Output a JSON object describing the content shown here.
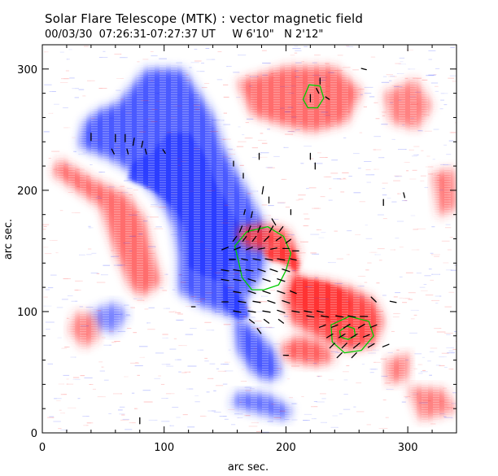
{
  "header": {
    "title": "Solar Flare Telescope (MTK) : vector magnetic field",
    "subtitle": "00/03/30  07:26:31-07:27:37 UT     W 6'10\"   N 2'12\""
  },
  "chart_data": {
    "type": "heatmap",
    "title": "Solar Flare Telescope (MTK) : vector magnetic field",
    "xlabel": "arc sec.",
    "ylabel": "arc sec.",
    "xlim": [
      0,
      340
    ],
    "ylim": [
      0,
      320
    ],
    "x_ticks": [
      0,
      100,
      200,
      300
    ],
    "y_ticks": [
      0,
      100,
      200,
      300
    ],
    "colors": {
      "positive_polarity": "#ff3030",
      "negative_polarity": "#2a3cff",
      "contour": "#00cc00",
      "vectors": "#000000",
      "frame": "#000000"
    },
    "regions": [
      {
        "polarity": "negative",
        "points": [
          [
            62,
            272
          ],
          [
            85,
            300
          ],
          [
            115,
            300
          ],
          [
            130,
            278
          ],
          [
            140,
            262
          ],
          [
            148,
            236
          ],
          [
            160,
            214
          ],
          [
            170,
            196
          ],
          [
            182,
            172
          ],
          [
            185,
            150
          ],
          [
            180,
            130
          ],
          [
            168,
            112
          ],
          [
            158,
            90
          ],
          [
            160,
            68
          ],
          [
            172,
            50
          ],
          [
            185,
            42
          ],
          [
            196,
            48
          ],
          [
            192,
            66
          ],
          [
            180,
            80
          ],
          [
            166,
            92
          ],
          [
            150,
            98
          ],
          [
            130,
            105
          ],
          [
            112,
            116
          ],
          [
            112,
            146
          ],
          [
            108,
            170
          ],
          [
            100,
            186
          ],
          [
            90,
            200
          ],
          [
            72,
            216
          ],
          [
            55,
            226
          ],
          [
            30,
            236
          ],
          [
            34,
            256
          ],
          [
            46,
            266
          ]
        ],
        "strength": 0.9
      },
      {
        "polarity": "negative",
        "points": [
          [
            155,
            22
          ],
          [
            170,
            18
          ],
          [
            200,
            10
          ],
          [
            205,
            20
          ],
          [
            185,
            32
          ],
          [
            160,
            34
          ]
        ],
        "strength": 0.6
      },
      {
        "polarity": "negative",
        "points": [
          [
            40,
            100
          ],
          [
            60,
            108
          ],
          [
            70,
            98
          ],
          [
            60,
            82
          ],
          [
            45,
            86
          ]
        ],
        "strength": 0.4
      },
      {
        "polarity": "positive",
        "points": [
          [
            160,
            168
          ],
          [
            180,
            172
          ],
          [
            200,
            168
          ],
          [
            210,
            150
          ],
          [
            205,
            132
          ],
          [
            198,
            112
          ],
          [
            205,
            90
          ],
          [
            228,
            78
          ],
          [
            250,
            68
          ],
          [
            272,
            72
          ],
          [
            280,
            92
          ],
          [
            272,
            110
          ],
          [
            252,
            120
          ],
          [
            230,
            126
          ],
          [
            212,
            128
          ],
          [
            200,
            140
          ],
          [
            188,
            150
          ],
          [
            172,
            152
          ],
          [
            162,
            158
          ]
        ],
        "strength": 0.95
      },
      {
        "polarity": "positive",
        "points": [
          [
            200,
            60
          ],
          [
            225,
            55
          ],
          [
            240,
            60
          ],
          [
            232,
            74
          ],
          [
            210,
            80
          ],
          [
            196,
            72
          ]
        ],
        "strength": 0.7
      },
      {
        "polarity": "positive",
        "points": [
          [
            160,
            290
          ],
          [
            200,
            302
          ],
          [
            240,
            302
          ],
          [
            262,
            282
          ],
          [
            250,
            256
          ],
          [
            222,
            248
          ],
          [
            196,
            254
          ],
          [
            172,
            262
          ]
        ],
        "strength": 0.6
      },
      {
        "polarity": "positive",
        "points": [
          [
            280,
            280
          ],
          [
            306,
            292
          ],
          [
            320,
            270
          ],
          [
            308,
            250
          ],
          [
            286,
            256
          ]
        ],
        "strength": 0.35
      },
      {
        "polarity": "positive",
        "points": [
          [
            8,
            214
          ],
          [
            28,
            200
          ],
          [
            48,
            186
          ],
          [
            58,
            154
          ],
          [
            72,
            120
          ],
          [
            82,
            112
          ],
          [
            98,
            124
          ],
          [
            90,
            150
          ],
          [
            84,
            176
          ],
          [
            70,
            196
          ],
          [
            40,
            210
          ],
          [
            14,
            226
          ]
        ],
        "strength": 0.55
      },
      {
        "polarity": "positive",
        "points": [
          [
            28,
            100
          ],
          [
            44,
            96
          ],
          [
            46,
            78
          ],
          [
            34,
            70
          ],
          [
            22,
            84
          ]
        ],
        "strength": 0.35
      },
      {
        "polarity": "positive",
        "points": [
          [
            320,
            214
          ],
          [
            338,
            218
          ],
          [
            340,
            186
          ],
          [
            326,
            178
          ]
        ],
        "strength": 0.45
      },
      {
        "polarity": "positive",
        "points": [
          [
            282,
            60
          ],
          [
            302,
            66
          ],
          [
            300,
            44
          ],
          [
            284,
            40
          ]
        ],
        "strength": 0.4
      },
      {
        "polarity": "positive",
        "points": [
          [
            300,
            38
          ],
          [
            330,
            36
          ],
          [
            340,
            18
          ],
          [
            310,
            10
          ]
        ],
        "strength": 0.35
      }
    ],
    "contours": [
      {
        "points": [
          [
            158,
            154
          ],
          [
            168,
            166
          ],
          [
            185,
            170
          ],
          [
            198,
            162
          ],
          [
            204,
            148
          ],
          [
            200,
            134
          ],
          [
            194,
            122
          ],
          [
            182,
            118
          ],
          [
            172,
            118
          ],
          [
            164,
            128
          ],
          [
            161,
            142
          ]
        ]
      },
      {
        "points": [
          [
            214,
            275
          ],
          [
            219,
            287
          ],
          [
            228,
            286
          ],
          [
            231,
            276
          ],
          [
            226,
            268
          ],
          [
            218,
            268
          ]
        ]
      },
      {
        "points": [
          [
            237,
            89
          ],
          [
            252,
            96
          ],
          [
            268,
            92
          ],
          [
            272,
            80
          ],
          [
            262,
            68
          ],
          [
            248,
            66
          ],
          [
            238,
            75
          ]
        ]
      },
      {
        "points": [
          [
            244,
            84
          ],
          [
            250,
            88
          ],
          [
            256,
            86
          ],
          [
            257,
            80
          ],
          [
            251,
            77
          ],
          [
            245,
            79
          ]
        ]
      }
    ],
    "vectors": [
      {
        "x": 40,
        "y": 244,
        "dx": 0,
        "dy": -6
      },
      {
        "x": 60,
        "y": 243,
        "dx": 0,
        "dy": -6
      },
      {
        "x": 68,
        "y": 243,
        "dx": 0,
        "dy": -6
      },
      {
        "x": 75,
        "y": 240,
        "dx": -1,
        "dy": -6
      },
      {
        "x": 82,
        "y": 238,
        "dx": -1,
        "dy": -5
      },
      {
        "x": 58,
        "y": 232,
        "dx": 2,
        "dy": -4
      },
      {
        "x": 70,
        "y": 232,
        "dx": 1,
        "dy": -4
      },
      {
        "x": 85,
        "y": 232,
        "dx": 1,
        "dy": -4
      },
      {
        "x": 100,
        "y": 232,
        "dx": 2,
        "dy": -3
      },
      {
        "x": 157,
        "y": 222,
        "dx": 0,
        "dy": 4
      },
      {
        "x": 178,
        "y": 228,
        "dx": 0,
        "dy": 5
      },
      {
        "x": 165,
        "y": 212,
        "dx": 0,
        "dy": 4
      },
      {
        "x": 220,
        "y": 228,
        "dx": 0,
        "dy": -5
      },
      {
        "x": 224,
        "y": 220,
        "dx": 0,
        "dy": -5
      },
      {
        "x": 181,
        "y": 200,
        "dx": 1,
        "dy": 6
      },
      {
        "x": 186,
        "y": 192,
        "dx": 0,
        "dy": 5
      },
      {
        "x": 166,
        "y": 182,
        "dx": 1,
        "dy": 4
      },
      {
        "x": 172,
        "y": 180,
        "dx": 1,
        "dy": 5
      },
      {
        "x": 190,
        "y": 174,
        "dx": -3,
        "dy": 5
      },
      {
        "x": 204,
        "y": 182,
        "dx": 0,
        "dy": 4
      },
      {
        "x": 280,
        "y": 190,
        "dx": 0,
        "dy": 5
      },
      {
        "x": 297,
        "y": 196,
        "dx": 1,
        "dy": -4
      },
      {
        "x": 163,
        "y": 168,
        "dx": 2,
        "dy": 5
      },
      {
        "x": 170,
        "y": 168,
        "dx": 2,
        "dy": 5
      },
      {
        "x": 178,
        "y": 168,
        "dx": 2,
        "dy": 5
      },
      {
        "x": 188,
        "y": 168,
        "dx": 3,
        "dy": 5
      },
      {
        "x": 196,
        "y": 168,
        "dx": 3,
        "dy": 4
      },
      {
        "x": 158,
        "y": 160,
        "dx": 3,
        "dy": 4
      },
      {
        "x": 166,
        "y": 160,
        "dx": 3,
        "dy": 4
      },
      {
        "x": 174,
        "y": 160,
        "dx": 3,
        "dy": 4
      },
      {
        "x": 184,
        "y": 160,
        "dx": 4,
        "dy": 4
      },
      {
        "x": 194,
        "y": 160,
        "dx": 4,
        "dy": 3
      },
      {
        "x": 202,
        "y": 158,
        "dx": 4,
        "dy": 3
      },
      {
        "x": 150,
        "y": 152,
        "dx": 5,
        "dy": 2
      },
      {
        "x": 160,
        "y": 152,
        "dx": 5,
        "dy": 2
      },
      {
        "x": 170,
        "y": 152,
        "dx": 5,
        "dy": 2
      },
      {
        "x": 180,
        "y": 152,
        "dx": 5,
        "dy": 1
      },
      {
        "x": 190,
        "y": 152,
        "dx": 5,
        "dy": 1
      },
      {
        "x": 200,
        "y": 152,
        "dx": 5,
        "dy": 0
      },
      {
        "x": 208,
        "y": 150,
        "dx": 5,
        "dy": 0
      },
      {
        "x": 156,
        "y": 143,
        "dx": 5,
        "dy": 0
      },
      {
        "x": 166,
        "y": 143,
        "dx": 5,
        "dy": -1
      },
      {
        "x": 176,
        "y": 143,
        "dx": 6,
        "dy": -1
      },
      {
        "x": 186,
        "y": 143,
        "dx": 6,
        "dy": -1
      },
      {
        "x": 196,
        "y": 143,
        "dx": 6,
        "dy": -1
      },
      {
        "x": 206,
        "y": 143,
        "dx": 5,
        "dy": -1
      },
      {
        "x": 150,
        "y": 134,
        "dx": 6,
        "dy": -1
      },
      {
        "x": 160,
        "y": 134,
        "dx": 6,
        "dy": -1
      },
      {
        "x": 170,
        "y": 134,
        "dx": 6,
        "dy": -1
      },
      {
        "x": 180,
        "y": 134,
        "dx": 6,
        "dy": -2
      },
      {
        "x": 190,
        "y": 134,
        "dx": 6,
        "dy": -2
      },
      {
        "x": 200,
        "y": 134,
        "dx": 6,
        "dy": -2
      },
      {
        "x": 150,
        "y": 126,
        "dx": 6,
        "dy": -1
      },
      {
        "x": 160,
        "y": 126,
        "dx": 6,
        "dy": -1
      },
      {
        "x": 172,
        "y": 126,
        "dx": 6,
        "dy": -2
      },
      {
        "x": 184,
        "y": 126,
        "dx": 6,
        "dy": -2
      },
      {
        "x": 196,
        "y": 126,
        "dx": 6,
        "dy": -2
      },
      {
        "x": 160,
        "y": 116,
        "dx": 6,
        "dy": -1
      },
      {
        "x": 172,
        "y": 116,
        "dx": 6,
        "dy": -2
      },
      {
        "x": 184,
        "y": 116,
        "dx": 6,
        "dy": -2
      },
      {
        "x": 196,
        "y": 116,
        "dx": 6,
        "dy": -2
      },
      {
        "x": 206,
        "y": 116,
        "dx": 5,
        "dy": -2
      },
      {
        "x": 150,
        "y": 108,
        "dx": 5,
        "dy": 0
      },
      {
        "x": 164,
        "y": 108,
        "dx": 6,
        "dy": -1
      },
      {
        "x": 176,
        "y": 108,
        "dx": 6,
        "dy": -1
      },
      {
        "x": 188,
        "y": 108,
        "dx": 6,
        "dy": -2
      },
      {
        "x": 200,
        "y": 108,
        "dx": 6,
        "dy": -2
      },
      {
        "x": 160,
        "y": 100,
        "dx": 6,
        "dy": -1
      },
      {
        "x": 172,
        "y": 100,
        "dx": 6,
        "dy": -1
      },
      {
        "x": 184,
        "y": 100,
        "dx": 6,
        "dy": -1
      },
      {
        "x": 196,
        "y": 100,
        "dx": 6,
        "dy": -2
      },
      {
        "x": 208,
        "y": 100,
        "dx": 6,
        "dy": -1
      },
      {
        "x": 218,
        "y": 100,
        "dx": 6,
        "dy": -1
      },
      {
        "x": 228,
        "y": 100,
        "dx": 5,
        "dy": -1
      },
      {
        "x": 124,
        "y": 104,
        "dx": 3,
        "dy": 0
      },
      {
        "x": 172,
        "y": 92,
        "dx": 4,
        "dy": -3
      },
      {
        "x": 184,
        "y": 92,
        "dx": 4,
        "dy": -3
      },
      {
        "x": 196,
        "y": 92,
        "dx": 4,
        "dy": -3
      },
      {
        "x": 178,
        "y": 84,
        "dx": 3,
        "dy": -4
      },
      {
        "x": 220,
        "y": 96,
        "dx": 6,
        "dy": -1
      },
      {
        "x": 232,
        "y": 96,
        "dx": 6,
        "dy": -1
      },
      {
        "x": 244,
        "y": 96,
        "dx": 6,
        "dy": -1
      },
      {
        "x": 254,
        "y": 96,
        "dx": 6,
        "dy": -1
      },
      {
        "x": 264,
        "y": 96,
        "dx": 6,
        "dy": 0
      },
      {
        "x": 230,
        "y": 88,
        "dx": 5,
        "dy": 2
      },
      {
        "x": 240,
        "y": 88,
        "dx": 5,
        "dy": 2
      },
      {
        "x": 250,
        "y": 88,
        "dx": 5,
        "dy": 3
      },
      {
        "x": 262,
        "y": 88,
        "dx": 5,
        "dy": 3
      },
      {
        "x": 272,
        "y": 88,
        "dx": 5,
        "dy": 2
      },
      {
        "x": 236,
        "y": 80,
        "dx": 5,
        "dy": 3
      },
      {
        "x": 246,
        "y": 80,
        "dx": 5,
        "dy": 3
      },
      {
        "x": 256,
        "y": 80,
        "dx": 5,
        "dy": 3
      },
      {
        "x": 266,
        "y": 80,
        "dx": 5,
        "dy": 2
      },
      {
        "x": 238,
        "y": 72,
        "dx": 4,
        "dy": 4
      },
      {
        "x": 248,
        "y": 72,
        "dx": 4,
        "dy": 4
      },
      {
        "x": 258,
        "y": 72,
        "dx": 5,
        "dy": 4
      },
      {
        "x": 270,
        "y": 72,
        "dx": 5,
        "dy": 3
      },
      {
        "x": 282,
        "y": 72,
        "dx": 5,
        "dy": 2
      },
      {
        "x": 244,
        "y": 64,
        "dx": 4,
        "dy": 4
      },
      {
        "x": 256,
        "y": 64,
        "dx": 4,
        "dy": 4
      },
      {
        "x": 200,
        "y": 64,
        "dx": 4,
        "dy": 0
      },
      {
        "x": 272,
        "y": 110,
        "dx": -4,
        "dy": 4
      },
      {
        "x": 288,
        "y": 108,
        "dx": 5,
        "dy": -1
      },
      {
        "x": 220,
        "y": 276,
        "dx": 0,
        "dy": 6
      },
      {
        "x": 226,
        "y": 282,
        "dx": 2,
        "dy": -4
      },
      {
        "x": 234,
        "y": 276,
        "dx": 3,
        "dy": -2
      },
      {
        "x": 228,
        "y": 290,
        "dx": 0,
        "dy": 5
      },
      {
        "x": 264,
        "y": 300,
        "dx": 4,
        "dy": -1
      },
      {
        "x": 80,
        "y": 10,
        "dx": 0,
        "dy": 5
      }
    ]
  }
}
